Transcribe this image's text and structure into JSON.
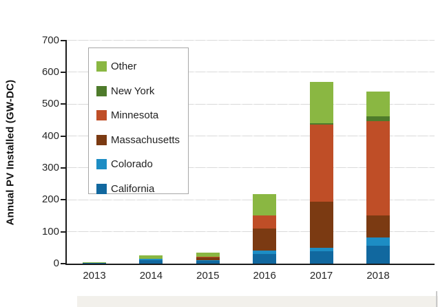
{
  "chart_data": {
    "type": "bar",
    "stacked": true,
    "title": "",
    "ylabel": "Annual PV Installed (GW-DC)",
    "xlabel": "",
    "ylim": [
      0,
      700
    ],
    "yticks": [
      0,
      100,
      200,
      300,
      400,
      500,
      600,
      700
    ],
    "grid": "horizontal light-gray dashed",
    "legend_position": "upper-left inside plot",
    "categories": [
      "2013",
      "2014",
      "2015",
      "2016",
      "2017",
      "2018"
    ],
    "series": [
      {
        "name": "California",
        "color": "#11689f",
        "values": [
          3,
          10,
          8,
          30,
          38,
          57
        ]
      },
      {
        "name": "Colorado",
        "color": "#1d8dc4",
        "values": [
          0,
          6,
          2,
          11,
          12,
          24
        ]
      },
      {
        "name": "Massachusetts",
        "color": "#7b3a12",
        "values": [
          0,
          0,
          9,
          70,
          145,
          71
        ]
      },
      {
        "name": "Minnesota",
        "color": "#bf4e27",
        "values": [
          0,
          0,
          2,
          40,
          240,
          294
        ]
      },
      {
        "name": "New York",
        "color": "#4e7b2b",
        "values": [
          0,
          0,
          0,
          0,
          5,
          16
        ]
      },
      {
        "name": "Other",
        "color": "#8ab742",
        "values": [
          2,
          10,
          13,
          67,
          130,
          78
        ]
      }
    ],
    "totals": [
      5,
      26,
      34,
      218,
      570,
      540
    ]
  },
  "legend": {
    "items": [
      {
        "label": "Other",
        "color": "#8ab742"
      },
      {
        "label": "New York",
        "color": "#4e7b2b"
      },
      {
        "label": "Minnesota",
        "color": "#bf4e27"
      },
      {
        "label": "Massachusetts",
        "color": "#7b3a12"
      },
      {
        "label": "Colorado",
        "color": "#1d8dc4"
      },
      {
        "label": "California",
        "color": "#11689f"
      }
    ]
  },
  "colors": {
    "axis": "#1a1a1a",
    "tick_text": "#262626",
    "gridline": "#d9d9d9",
    "legend_border": "#a6a6a6",
    "background": "#ffffff"
  }
}
